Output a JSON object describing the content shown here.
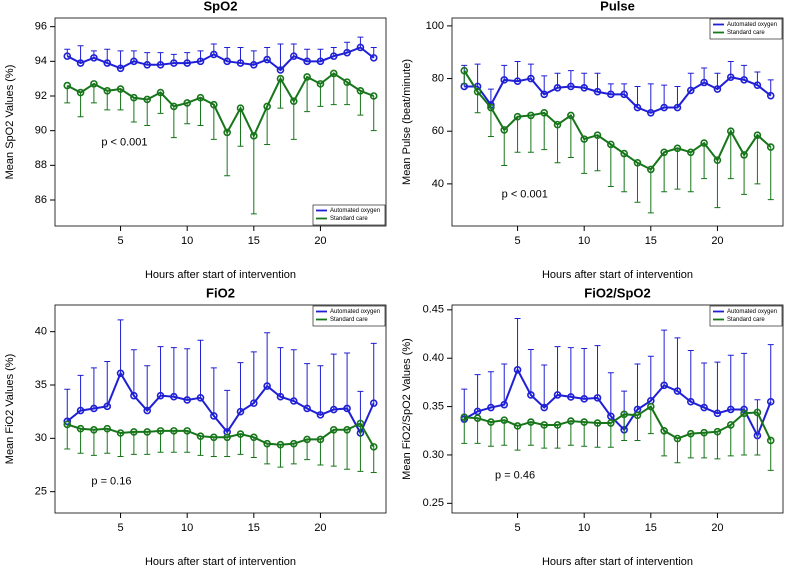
{
  "chart_data": [
    {
      "type": "line",
      "title": "SpO2",
      "x_label": "Hours after start of intervention",
      "y_label": "Mean SpO2 Values (%)",
      "annotation": "p < 0.001",
      "legend": "bottom-right",
      "x": [
        1,
        2,
        3,
        4,
        5,
        6,
        7,
        8,
        9,
        10,
        11,
        12,
        13,
        14,
        15,
        16,
        17,
        18,
        19,
        20,
        21,
        22,
        23,
        24
      ],
      "xlim": [
        0.08,
        24.92
      ],
      "xticks": [
        5,
        10,
        15,
        20
      ],
      "ylim": [
        84.5,
        96.5
      ],
      "yticks": [
        86,
        88,
        90,
        92,
        94,
        96
      ],
      "series": [
        {
          "name": "Automated oxygen",
          "color": "#1f1fd6",
          "error_side": "upper",
          "values": [
            94.3,
            93.9,
            94.2,
            93.9,
            93.6,
            94.0,
            93.8,
            93.8,
            93.9,
            93.9,
            94.0,
            94.4,
            94.0,
            93.9,
            93.8,
            94.1,
            93.5,
            94.3,
            94.0,
            94.0,
            94.3,
            94.5,
            94.8,
            94.2
          ],
          "errors": [
            0.4,
            1.0,
            0.4,
            0.8,
            1.0,
            0.6,
            0.7,
            0.7,
            0.5,
            0.6,
            0.6,
            0.6,
            0.8,
            0.9,
            0.8,
            0.7,
            1.5,
            0.7,
            0.7,
            0.7,
            0.5,
            0.6,
            0.6,
            0.6
          ]
        },
        {
          "name": "Standard care",
          "color": "#17751a",
          "error_side": "lower",
          "values": [
            92.6,
            92.2,
            92.7,
            92.3,
            92.4,
            91.9,
            91.8,
            92.2,
            91.4,
            91.6,
            91.9,
            91.5,
            89.9,
            91.3,
            89.7,
            91.4,
            93.0,
            91.7,
            93.1,
            92.7,
            93.3,
            92.8,
            92.3,
            92.0
          ],
          "errors": [
            1.0,
            1.4,
            1.1,
            1.1,
            1.2,
            1.4,
            1.5,
            1.2,
            1.8,
            1.2,
            1.6,
            2.0,
            2.5,
            2.2,
            4.5,
            2.2,
            1.7,
            2.2,
            2.0,
            1.3,
            1.8,
            1.3,
            1.4,
            2.0
          ]
        }
      ]
    },
    {
      "type": "line",
      "title": "Pulse",
      "x_label": "Hours after start of intervention",
      "y_label": "Mean Pulse (beat/minute)",
      "annotation": "p < 0.001",
      "legend": "top-right",
      "x": [
        1,
        2,
        3,
        4,
        5,
        6,
        7,
        8,
        9,
        10,
        11,
        12,
        13,
        14,
        15,
        16,
        17,
        18,
        19,
        20,
        21,
        22,
        23,
        24
      ],
      "xlim": [
        0.08,
        24.92
      ],
      "xticks": [
        5,
        10,
        15,
        20
      ],
      "ylim": [
        24,
        103
      ],
      "yticks": [
        40,
        60,
        80,
        100
      ],
      "series": [
        {
          "name": "Automated oxygen",
          "color": "#1f1fd6",
          "error_side": "upper",
          "values": [
            77,
            77,
            70,
            79.5,
            79,
            80,
            74,
            76.5,
            77,
            76.5,
            75,
            74,
            74,
            69,
            67,
            69,
            69,
            75.5,
            78.5,
            76,
            80.5,
            79.5,
            77.5,
            73.5
          ],
          "errors": [
            8,
            8.5,
            6,
            5.5,
            7.5,
            5.5,
            7,
            5.5,
            6,
            5.5,
            7,
            4,
            4,
            8,
            11,
            8.5,
            8,
            6.5,
            5.5,
            6,
            6,
            5.5,
            5,
            6
          ]
        },
        {
          "name": "Standard care",
          "color": "#17751a",
          "error_side": "lower",
          "values": [
            83,
            75,
            69,
            60.5,
            65.5,
            66,
            67,
            62.5,
            66,
            57,
            58.5,
            55,
            51.5,
            48,
            45.5,
            52,
            53.5,
            52,
            55.5,
            49,
            60,
            51,
            58.5,
            54
          ],
          "errors": [
            5,
            8,
            11,
            13.5,
            13.5,
            14,
            14,
            14.5,
            16,
            13,
            13.5,
            16,
            14.5,
            15,
            16.5,
            15,
            15.5,
            15,
            13.5,
            18,
            18,
            15,
            18.5,
            20
          ]
        }
      ]
    },
    {
      "type": "line",
      "title": "FiO2",
      "x_label": "Hours after start of intervention",
      "y_label": "Mean FiO2 Values (%)",
      "annotation": "p = 0.16",
      "legend": "top-right",
      "x": [
        1,
        2,
        3,
        4,
        5,
        6,
        7,
        8,
        9,
        10,
        11,
        12,
        13,
        14,
        15,
        16,
        17,
        18,
        19,
        20,
        21,
        22,
        23,
        24
      ],
      "xlim": [
        0.08,
        24.92
      ],
      "xticks": [
        5,
        10,
        15,
        20
      ],
      "ylim": [
        23,
        42.5
      ],
      "yticks": [
        25,
        30,
        35,
        40
      ],
      "series": [
        {
          "name": "Automated oxygen",
          "color": "#1f1fd6",
          "error_side": "upper",
          "values": [
            31.6,
            32.6,
            32.8,
            33.0,
            36.1,
            34.0,
            32.6,
            34.0,
            33.9,
            33.6,
            33.8,
            32.1,
            30.6,
            32.5,
            33.3,
            34.9,
            33.9,
            33.5,
            32.8,
            32.2,
            32.7,
            32.8,
            30.5,
            33.3
          ],
          "errors": [
            3.0,
            3.3,
            3.8,
            4.2,
            5.0,
            4.3,
            4.2,
            4.6,
            4.6,
            4.8,
            5.4,
            4.5,
            3.9,
            4.6,
            4.8,
            5.0,
            4.6,
            4.8,
            4.2,
            4.6,
            5.2,
            5.2,
            3.9,
            5.6
          ]
        },
        {
          "name": "Standard care",
          "color": "#17751a",
          "error_side": "lower",
          "values": [
            31.3,
            30.9,
            30.8,
            30.9,
            30.5,
            30.6,
            30.6,
            30.7,
            30.7,
            30.7,
            30.2,
            30.1,
            30.1,
            30.4,
            30.1,
            29.5,
            29.4,
            29.5,
            29.9,
            29.9,
            30.8,
            30.8,
            31.4,
            29.2
          ],
          "errors": [
            2.3,
            2.3,
            2.4,
            2.3,
            2.2,
            2.1,
            2.1,
            2.0,
            2.0,
            2.0,
            1.8,
            1.8,
            1.8,
            1.9,
            1.9,
            1.9,
            2.1,
            1.9,
            1.9,
            2.4,
            3.4,
            3.7,
            4.5,
            2.4
          ]
        }
      ]
    },
    {
      "type": "line",
      "title": "FiO2/SpO2",
      "x_label": "Hours after start of intervention",
      "y_label": "Mean FiO2/SpO2 Values (%)",
      "annotation": "p = 0.46",
      "legend": "top-right",
      "x": [
        1,
        2,
        3,
        4,
        5,
        6,
        7,
        8,
        9,
        10,
        11,
        12,
        13,
        14,
        15,
        16,
        17,
        18,
        19,
        20,
        21,
        22,
        23,
        24
      ],
      "xlim": [
        0.08,
        24.92
      ],
      "xticks": [
        5,
        10,
        15,
        20
      ],
      "ylim": [
        0.24,
        0.455
      ],
      "yticks": [
        0.25,
        {
          "value": 0.3,
          "label": "0.30"
        },
        0.35,
        {
          "value": 0.4,
          "label": "0.40"
        },
        0.45
      ],
      "series": [
        {
          "name": "Automated oxygen",
          "color": "#1f1fd6",
          "error_side": "upper",
          "values": [
            0.337,
            0.345,
            0.349,
            0.352,
            0.388,
            0.362,
            0.349,
            0.362,
            0.36,
            0.358,
            0.359,
            0.34,
            0.326,
            0.347,
            0.356,
            0.372,
            0.366,
            0.355,
            0.349,
            0.343,
            0.347,
            0.347,
            0.32,
            0.355
          ],
          "errors": [
            0.031,
            0.038,
            0.037,
            0.042,
            0.053,
            0.047,
            0.044,
            0.05,
            0.051,
            0.052,
            0.054,
            0.045,
            0.04,
            0.047,
            0.046,
            0.057,
            0.055,
            0.053,
            0.046,
            0.053,
            0.056,
            0.058,
            0.037,
            0.059
          ]
        },
        {
          "name": "Standard care",
          "color": "#17751a",
          "error_side": "lower",
          "values": [
            0.339,
            0.338,
            0.334,
            0.336,
            0.33,
            0.334,
            0.331,
            0.331,
            0.335,
            0.334,
            0.333,
            0.333,
            0.342,
            0.341,
            0.35,
            0.325,
            0.317,
            0.322,
            0.323,
            0.324,
            0.331,
            0.343,
            0.344,
            0.315
          ],
          "errors": [
            0.027,
            0.026,
            0.025,
            0.026,
            0.025,
            0.024,
            0.024,
            0.024,
            0.025,
            0.025,
            0.025,
            0.025,
            0.027,
            0.026,
            0.028,
            0.026,
            0.025,
            0.025,
            0.026,
            0.028,
            0.032,
            0.043,
            0.044,
            0.031
          ]
        }
      ]
    }
  ]
}
